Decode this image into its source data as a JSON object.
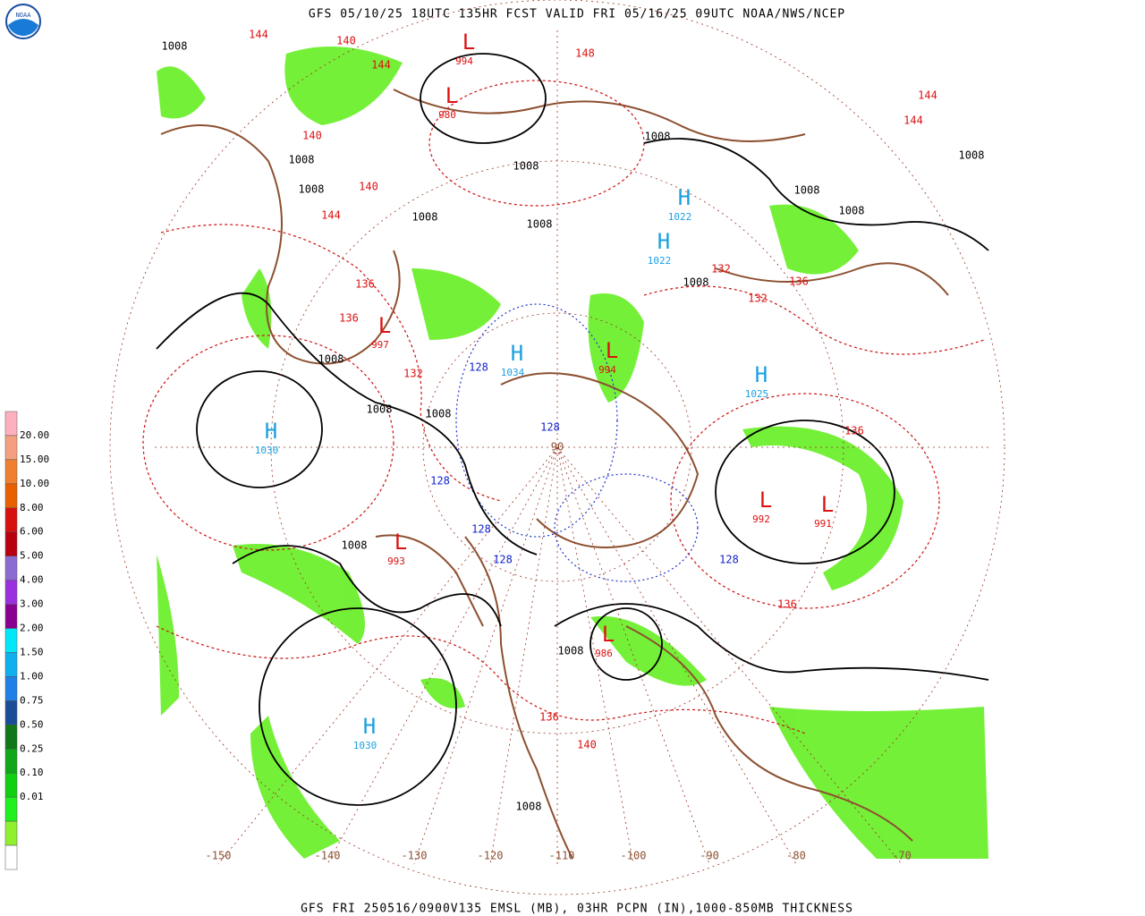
{
  "header": {
    "title": "GFS 05/10/25 18UTC 135HR FCST VALID FRI 05/16/25 09UTC NOAA/NWS/NCEP",
    "logo": "NOAA"
  },
  "footer": {
    "caption": "GFS FRI 250516/0900V135 EMSL (MB), 03HR PCPN (IN),1000-850MB THICKNESS"
  },
  "legend": {
    "colors": [
      "#ffb0c0",
      "#f4a080",
      "#f08030",
      "#e86000",
      "#d81010",
      "#b80010",
      "#8c6cd0",
      "#9a30e0",
      "#8a0090",
      "#00e8f8",
      "#10b0f0",
      "#2080e8",
      "#1a4c98",
      "#107818",
      "#10a818",
      "#10d010",
      "#20f020",
      "#90f030"
    ],
    "labels": [
      "20.00",
      "15.00",
      "10.00",
      "8.00",
      "6.00",
      "5.00",
      "4.00",
      "3.00",
      "2.00",
      "1.50",
      "1.00",
      "0.75",
      "0.50",
      "0.25",
      "0.10",
      "0.01"
    ]
  },
  "map": {
    "centers": [
      {
        "symbol": "H",
        "value": "1030"
      },
      {
        "symbol": "H",
        "value": "1030"
      },
      {
        "symbol": "H",
        "value": "1022"
      },
      {
        "symbol": "H",
        "value": "1022"
      },
      {
        "symbol": "H",
        "value": "1034"
      },
      {
        "symbol": "H",
        "value": "1025"
      },
      {
        "symbol": "L",
        "value": "994"
      },
      {
        "symbol": "L",
        "value": "980"
      },
      {
        "symbol": "L",
        "value": "992"
      },
      {
        "symbol": "L",
        "value": "991"
      },
      {
        "symbol": "L",
        "value": "997"
      },
      {
        "symbol": "L",
        "value": "986"
      },
      {
        "symbol": "L",
        "value": "993"
      },
      {
        "symbol": "L",
        "value": "994"
      }
    ],
    "isobar_labels": [
      "1008",
      "1008",
      "1008",
      "1008",
      "1008",
      "1008",
      "1008",
      "1008",
      "1008",
      "1008",
      "1008",
      "1008",
      "1008",
      "1008",
      "1008",
      "1008",
      "1008"
    ],
    "thickness_labels": [
      "144",
      "140",
      "144",
      "140",
      "144",
      "140",
      "136",
      "136",
      "132",
      "132",
      "136",
      "132",
      "136",
      "136",
      "136",
      "140",
      "148",
      "144",
      "144"
    ],
    "low_thickness_labels": [
      "128",
      "128",
      "128",
      "128",
      "128",
      "128"
    ],
    "longitudes": [
      "-150",
      "-140",
      "-130",
      "-120",
      "-110",
      "-100",
      "-90",
      "-80",
      "-70"
    ],
    "pole_label": "90"
  }
}
